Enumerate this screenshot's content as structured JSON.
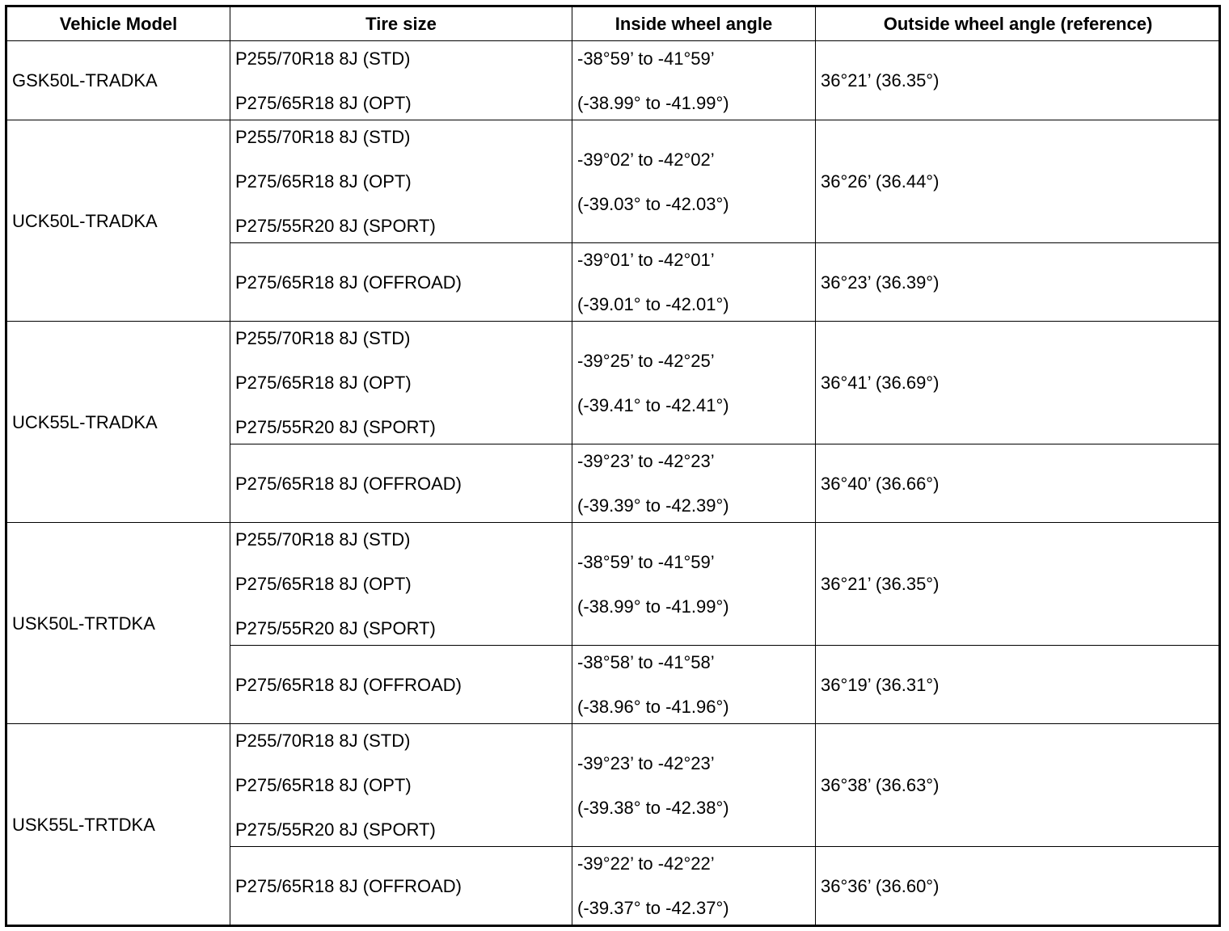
{
  "table": {
    "header": [
      "Vehicle Model",
      "Tire size",
      "Inside wheel angle",
      "Outside wheel angle (reference)"
    ],
    "groups": [
      {
        "model": "GSK50L-TRADKA",
        "rows": [
          {
            "tires": [
              "P255/70R18 8J (STD)",
              "P275/65R18 8J (OPT)"
            ],
            "inside": [
              "-38°59’ to -41°59’",
              "(-38.99° to -41.99°)"
            ],
            "outside": "36°21’ (36.35°)"
          }
        ]
      },
      {
        "model": "UCK50L-TRADKA",
        "rows": [
          {
            "tires": [
              "P255/70R18 8J (STD)",
              "P275/65R18 8J (OPT)",
              "P275/55R20 8J (SPORT)"
            ],
            "inside": [
              "-39°02’ to -42°02’",
              "(-39.03° to -42.03°)"
            ],
            "outside": "36°26’ (36.44°)"
          },
          {
            "tires": [
              "P275/65R18 8J (OFFROAD)"
            ],
            "inside": [
              "-39°01’ to -42°01’",
              "(-39.01° to -42.01°)"
            ],
            "outside": "36°23’ (36.39°)"
          }
        ]
      },
      {
        "model": "UCK55L-TRADKA",
        "rows": [
          {
            "tires": [
              "P255/70R18 8J (STD)",
              "P275/65R18 8J (OPT)",
              "P275/55R20 8J (SPORT)"
            ],
            "inside": [
              "-39°25’ to -42°25’",
              "(-39.41° to -42.41°)"
            ],
            "outside": "36°41’ (36.69°)"
          },
          {
            "tires": [
              "P275/65R18 8J (OFFROAD)"
            ],
            "inside": [
              "-39°23’ to -42°23’",
              "(-39.39° to -42.39°)"
            ],
            "outside": "36°40’ (36.66°)"
          }
        ]
      },
      {
        "model": "USK50L-TRTDKA",
        "rows": [
          {
            "tires": [
              "P255/70R18 8J (STD)",
              "P275/65R18 8J (OPT)",
              "P275/55R20 8J (SPORT)"
            ],
            "inside": [
              "-38°59’ to -41°59’",
              "(-38.99° to -41.99°)"
            ],
            "outside": "36°21’ (36.35°)"
          },
          {
            "tires": [
              "P275/65R18 8J (OFFROAD)"
            ],
            "inside": [
              "-38°58’ to -41°58’",
              "(-38.96° to -41.96°)"
            ],
            "outside": "36°19’ (36.31°)"
          }
        ]
      },
      {
        "model": "USK55L-TRTDKA",
        "rows": [
          {
            "tires": [
              "P255/70R18 8J (STD)",
              "P275/65R18 8J (OPT)",
              "P275/55R20 8J (SPORT)"
            ],
            "inside": [
              "-39°23’ to -42°23’",
              "(-39.38° to -42.38°)"
            ],
            "outside": "36°38’ (36.63°)"
          },
          {
            "tires": [
              "P275/65R18 8J (OFFROAD)"
            ],
            "inside": [
              "-39°22’ to -42°22’",
              "(-39.37° to -42.37°)"
            ],
            "outside": "36°36’ (36.60°)"
          }
        ]
      }
    ]
  }
}
